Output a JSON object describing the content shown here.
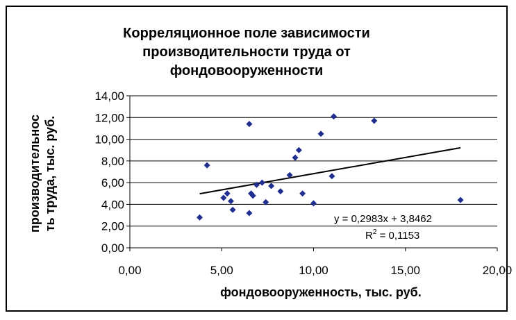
{
  "chart_data": {
    "type": "scatter",
    "title_lines": [
      "Корреляционное поле зависимости",
      "производительности труда от",
      "фондовооруженности"
    ],
    "xlabel": "фондовооруженность, тыс.  руб.",
    "ylabel_lines": [
      "производительнос",
      "ть труда, тыс. руб."
    ],
    "xlim": [
      0,
      20
    ],
    "ylim": [
      0,
      14
    ],
    "x_ticks": [
      "0,00",
      "5,00",
      "10,00",
      "15,00",
      "20,00"
    ],
    "y_ticks": [
      "0,00",
      "2,00",
      "4,00",
      "6,00",
      "8,00",
      "10,00",
      "12,00",
      "14,00"
    ],
    "grid": "horizontal",
    "marker_color": "#1f2e8f",
    "points": [
      {
        "x": 3.8,
        "y": 2.8
      },
      {
        "x": 4.2,
        "y": 7.6
      },
      {
        "x": 5.1,
        "y": 4.6
      },
      {
        "x": 5.3,
        "y": 5.0
      },
      {
        "x": 5.5,
        "y": 4.3
      },
      {
        "x": 5.6,
        "y": 3.5
      },
      {
        "x": 6.5,
        "y": 3.2
      },
      {
        "x": 6.5,
        "y": 11.4
      },
      {
        "x": 6.6,
        "y": 5.0
      },
      {
        "x": 6.7,
        "y": 4.8
      },
      {
        "x": 6.9,
        "y": 5.8
      },
      {
        "x": 7.2,
        "y": 6.0
      },
      {
        "x": 7.4,
        "y": 4.2
      },
      {
        "x": 7.7,
        "y": 5.7
      },
      {
        "x": 8.2,
        "y": 5.2
      },
      {
        "x": 8.7,
        "y": 6.7
      },
      {
        "x": 9.0,
        "y": 8.3
      },
      {
        "x": 9.2,
        "y": 9.0
      },
      {
        "x": 9.4,
        "y": 5.0
      },
      {
        "x": 10.0,
        "y": 4.1
      },
      {
        "x": 10.4,
        "y": 10.5
      },
      {
        "x": 11.0,
        "y": 6.6
      },
      {
        "x": 11.1,
        "y": 12.1
      },
      {
        "x": 13.3,
        "y": 11.7
      },
      {
        "x": 18.0,
        "y": 4.4
      }
    ],
    "trendline": {
      "slope": 0.2983,
      "intercept": 3.8462,
      "x_range": [
        3.8,
        18.0
      ]
    },
    "equation": "y = 0,2983x + 3,8462",
    "r2_label": "R",
    "r2_exponent": "2",
    "r2_value": " = 0,1153"
  }
}
